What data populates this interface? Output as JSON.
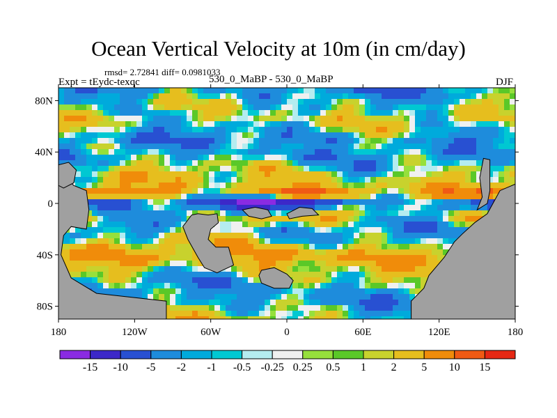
{
  "chart_data": {
    "type": "heatmap",
    "title": "Ocean Vertical Velocity at 10m (in cm/day)",
    "stats_text": "rmsd= 2.72841 diff= 0.0981033",
    "left_label": "Expt = tEydc-texqc",
    "center_label": "530_0_MaBP - 530_0_MaBP",
    "right_label": "DJF",
    "x_axis": {
      "range": [
        -180,
        180
      ],
      "ticks": [
        -180,
        -120,
        -60,
        0,
        60,
        120,
        180
      ],
      "tick_labels": [
        "180",
        "120W",
        "60W",
        "0",
        "60E",
        "120E",
        "180"
      ]
    },
    "y_axis": {
      "range": [
        -90,
        90
      ],
      "ticks": [
        80,
        40,
        0,
        -40,
        -80
      ],
      "tick_labels": [
        "80N",
        "40N",
        "0",
        "40S",
        "80S"
      ]
    },
    "colorbar": {
      "levels": [
        "-15",
        "-10",
        "-5",
        "-2",
        "-1",
        "-0.5",
        "-0.25",
        "0.25",
        "0.5",
        "1",
        "2",
        "5",
        "10",
        "15"
      ],
      "colors": [
        "#8a2be2",
        "#3c28c8",
        "#2850d2",
        "#1e8cdc",
        "#00aadc",
        "#00c8d2",
        "#b4ecf0",
        "#f0f0f0",
        "#96e03c",
        "#5ac828",
        "#c8d22d",
        "#e6be1e",
        "#f08c0a",
        "#f05a14",
        "#e62814"
      ]
    },
    "land_color": "#a0a0a0",
    "field_description": "Alternating zonal bands of upwelling (warm colors) and downwelling (cool colors); strong downwelling band along the equator, upwelling bands in subtropics."
  }
}
